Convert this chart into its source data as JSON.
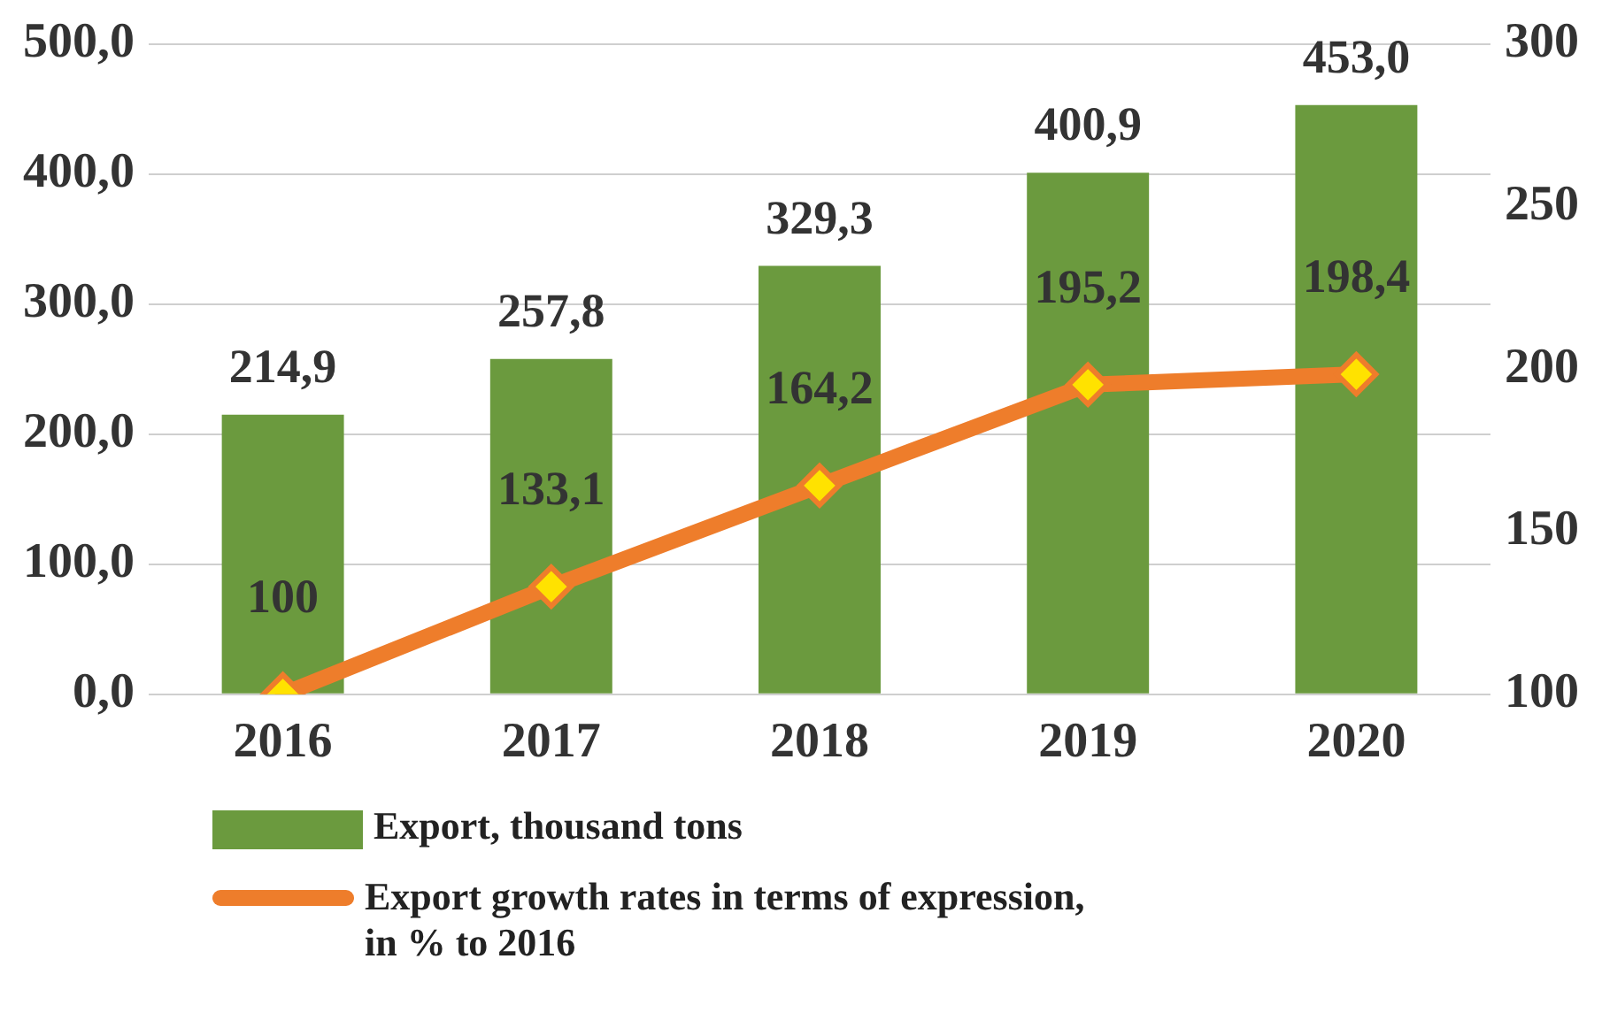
{
  "chart_data": {
    "type": "bar",
    "categories": [
      "2016",
      "2017",
      "2018",
      "2019",
      "2020"
    ],
    "series": [
      {
        "name": "Export, thousand tons",
        "color": "#6b9a3e",
        "values": [
          214.9,
          257.8,
          329.3,
          400.9,
          453.0
        ],
        "value_labels": [
          "214,9",
          "257,8",
          "329,3",
          "400,9",
          "453,0"
        ]
      },
      {
        "name": "Export growth rates in terms of expression, in % to 2016",
        "type": "line",
        "axis": "y2",
        "color": "#ee7d2b",
        "values": [
          100,
          133.1,
          164.2,
          195.2,
          198.4
        ],
        "value_labels": [
          "100",
          "133,1",
          "164,2",
          "195,2",
          "198,4"
        ]
      }
    ],
    "ylim": [
      0,
      500
    ],
    "yticks": [
      {
        "value": 0,
        "label": "0,0"
      },
      {
        "value": 100,
        "label": "100,0"
      },
      {
        "value": 200,
        "label": "200,0"
      },
      {
        "value": 300,
        "label": "300,0"
      },
      {
        "value": 400,
        "label": "400,0"
      },
      {
        "value": 500,
        "label": "500,0"
      }
    ],
    "y2lim": [
      100,
      300
    ],
    "y2ticks": [
      100,
      150,
      200,
      250,
      300
    ],
    "grid": "y",
    "legend": "bottom",
    "marker": "diamond",
    "line_style": "solid"
  }
}
